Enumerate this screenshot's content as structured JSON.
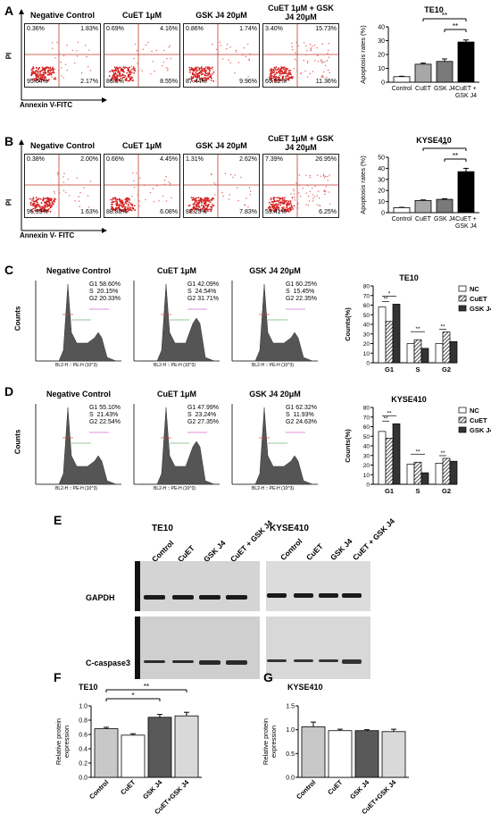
{
  "panelA": {
    "letter": "A",
    "plots": [
      {
        "title": "Negative Control",
        "ul": "0.36%",
        "ur": "1.83%",
        "ll": "95.64%",
        "lr": "2.17%"
      },
      {
        "title": "CuET 1μM",
        "ul": "0.69%",
        "ur": "4.16%",
        "ll": "86.6%",
        "lr": "8.55%"
      },
      {
        "title": "GSK J4 20μM",
        "ul": "0.86%",
        "ur": "1.74%",
        "ll": "87.44%",
        "lr": "9.96%"
      },
      {
        "title": "CuET 1μM + GSK J4 20μM",
        "ul": "3.40%",
        "ur": "15.73%",
        "ll": "69.52%",
        "lr": "11.36%"
      }
    ],
    "ylabel": "PI",
    "xlabel": "Annexin V-FITC"
  },
  "panelB": {
    "letter": "B",
    "plots": [
      {
        "title": "Negative Control",
        "ul": "0.38%",
        "ur": "2.00%",
        "ll": "95.99%",
        "lr": "1.63%"
      },
      {
        "title": "CuET 1μM",
        "ul": "0.66%",
        "ur": "4.45%",
        "ll": "88.80%",
        "lr": "6.08%"
      },
      {
        "title": "GSK J4 20μM",
        "ul": "1.31%",
        "ur": "2.62%",
        "ll": "88.25%",
        "lr": "7.83%"
      },
      {
        "title": "CuET 1μM + GSK J4 20μM",
        "ul": "7.39%",
        "ur": "26.95%",
        "ll": "59.41%",
        "lr": "6.25%"
      }
    ],
    "ylabel": "PI",
    "xlabel": "Annexin V- FITC"
  },
  "panelC": {
    "letter": "C",
    "plots": [
      {
        "title": "Negative Control",
        "g1": "G1 58.60%",
        "s": "S  20.15%",
        "g2": "G2 20.33%"
      },
      {
        "title": "CuET 1μM",
        "g1": "G1 42.09%",
        "s": "S  24.54%",
        "g2": "G2 31.71%"
      },
      {
        "title": "GSK J4 20μM",
        "g1": "G1 60.25%",
        "s": "S  15.45%",
        "g2": "G2 22.35%"
      }
    ],
    "ylabel": "Counts",
    "xlabel": "BL2-H :: PE-H (10^3)"
  },
  "panelD": {
    "letter": "D",
    "plots": [
      {
        "title": "Negative Control",
        "g1": "G1 55.10%",
        "s": "S  21.43%",
        "g2": "G2 22.54%"
      },
      {
        "title": "CuET 1μM",
        "g1": "G1 47.99%",
        "s": "S  23.24%",
        "g2": "G2 27.35%"
      },
      {
        "title": "GSK J4 20μM",
        "g1": "G1 62.32%",
        "s": "S  11.93%",
        "g2": "G2 24.63%"
      }
    ],
    "ylabel": "Counts",
    "xlabel": "BL2-H :: PE-H (10^3)"
  },
  "panelE": {
    "letter": "E",
    "te10_label": "TE10",
    "kyse_label": "KYSE410",
    "lanes": [
      "Control",
      "CuET",
      "GSK J4",
      "CuET + GSK J4"
    ],
    "gapdh": "GAPDH",
    "casp": "C-caspase3"
  },
  "panelF": {
    "letter": "F"
  },
  "panelG": {
    "letter": "G"
  },
  "chart_data": [
    {
      "id": "A-bar",
      "type": "bar",
      "title": "TE10",
      "categories": [
        "Control",
        "CuET",
        "GSK J4",
        "CuET + GSK J4"
      ],
      "values": [
        4,
        13,
        15,
        29
      ],
      "errors": [
        0.3,
        0.8,
        1.8,
        1.5
      ],
      "colors": [
        "#ffffff",
        "#a8a8a8",
        "#7a7a7a",
        "#000000"
      ],
      "ylabel": "Apoptosis rates (%)",
      "ylim": [
        0,
        40
      ],
      "yticks": [
        0,
        10,
        20,
        30,
        40
      ],
      "sig": [
        {
          "from": 1,
          "to": 3,
          "label": "**"
        },
        {
          "from": 2,
          "to": 3,
          "label": "**"
        }
      ]
    },
    {
      "id": "B-bar",
      "type": "bar",
      "title": "KYSE410",
      "categories": [
        "Control",
        "CuET",
        "GSK J4",
        "CuET + GSK J4"
      ],
      "values": [
        4.5,
        11,
        12,
        37
      ],
      "errors": [
        0.3,
        0.5,
        0.6,
        3
      ],
      "colors": [
        "#ffffff",
        "#a8a8a8",
        "#7a7a7a",
        "#000000"
      ],
      "ylabel": "Apoptosis rates (%)",
      "ylim": [
        0,
        50
      ],
      "yticks": [
        0,
        10,
        20,
        30,
        40,
        50
      ],
      "sig": [
        {
          "from": 1,
          "to": 3,
          "label": "**"
        },
        {
          "from": 2,
          "to": 3,
          "label": "**"
        }
      ]
    },
    {
      "id": "C-bar",
      "type": "bar",
      "title": "TE10",
      "categories": [
        "G1",
        "S",
        "G2"
      ],
      "series": [
        {
          "name": "NC",
          "values": [
            58,
            20,
            20
          ]
        },
        {
          "name": "CuET",
          "values": [
            43,
            24,
            32
          ]
        },
        {
          "name": "GSK J4",
          "values": [
            61,
            15,
            22
          ]
        }
      ],
      "ylabel": "Counts(%)",
      "ylim": [
        0,
        80
      ],
      "yticks": [
        0,
        10,
        20,
        30,
        40,
        50,
        60,
        70,
        80
      ],
      "sig": [
        {
          "group": 0,
          "from": 0,
          "to": 1,
          "label": "**"
        },
        {
          "group": 0,
          "from": 0,
          "to": 2,
          "label": "*"
        },
        {
          "group": 1,
          "from": 0,
          "to": 2,
          "label": "**"
        },
        {
          "group": 2,
          "from": 0,
          "to": 1,
          "label": "**"
        }
      ]
    },
    {
      "id": "D-bar",
      "type": "bar",
      "title": "KYSE410",
      "categories": [
        "G1",
        "S",
        "G2"
      ],
      "series": [
        {
          "name": "NC",
          "values": [
            55,
            21,
            22
          ]
        },
        {
          "name": "CuET",
          "values": [
            48,
            23,
            27
          ]
        },
        {
          "name": "GSK J4",
          "values": [
            63,
            12,
            24
          ]
        }
      ],
      "ylabel": "Counts(%)",
      "ylim": [
        0,
        80
      ],
      "yticks": [
        0,
        10,
        20,
        30,
        40,
        50,
        60,
        70,
        80
      ],
      "sig": [
        {
          "group": 0,
          "from": 0,
          "to": 1,
          "label": "**"
        },
        {
          "group": 0,
          "from": 0,
          "to": 2,
          "label": "**"
        },
        {
          "group": 1,
          "from": 0,
          "to": 2,
          "label": "**"
        },
        {
          "group": 2,
          "from": 0,
          "to": 1,
          "label": "**"
        }
      ]
    },
    {
      "id": "F-bar",
      "type": "bar",
      "title": "TE10",
      "categories": [
        "Control",
        "CuET",
        "GSK J4",
        "CuET+GSK J4"
      ],
      "values": [
        0.68,
        0.59,
        0.84,
        0.86
      ],
      "errors": [
        0.02,
        0.02,
        0.04,
        0.05
      ],
      "colors": [
        "#c8c8c8",
        "#ffffff",
        "#595959",
        "#d9d9d9"
      ],
      "ylabel": "Relative protein expression",
      "ylim": [
        0,
        1.0
      ],
      "yticks": [
        0.0,
        0.2,
        0.4,
        0.6,
        0.8,
        1.0
      ],
      "sig": [
        {
          "from": 0,
          "to": 2,
          "label": "*"
        },
        {
          "from": 0,
          "to": 3,
          "label": "**"
        }
      ]
    },
    {
      "id": "G-bar",
      "type": "bar",
      "title": "KYSE410",
      "categories": [
        "Control",
        "CuET",
        "GSK J4",
        "CuET+GSK J4"
      ],
      "values": [
        1.06,
        0.98,
        0.98,
        0.96
      ],
      "errors": [
        0.1,
        0.03,
        0.02,
        0.05
      ],
      "colors": [
        "#c8c8c8",
        "#ffffff",
        "#595959",
        "#d9d9d9"
      ],
      "ylabel": "Relative protein expression",
      "ylim": [
        0,
        1.5
      ],
      "yticks": [
        0.0,
        0.5,
        1.0,
        1.5
      ],
      "sig": []
    }
  ]
}
